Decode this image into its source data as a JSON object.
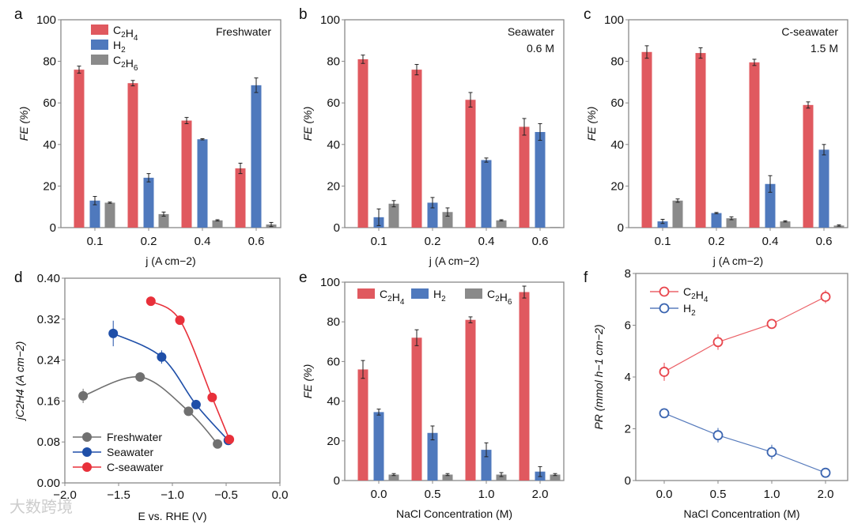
{
  "colors": {
    "C2H4": "#e0595f",
    "H2": "#4f79bd",
    "C2H6": "#8a8a8a",
    "Freshwater": "#707070",
    "Seawater": "#1f4fa8",
    "C-seawater": "#e8303a",
    "PR_C2H4": "#e8454c",
    "PR_H2": "#3a64b0"
  },
  "watermark": "大数跨境",
  "chart_data": [
    {
      "panel": "a",
      "type": "bar",
      "annotation": [
        "Freshwater"
      ],
      "categories": [
        "0.1",
        "0.2",
        "0.4",
        "0.6"
      ],
      "xlabel": "j (A cm−2)",
      "ylabel": "FE (%)",
      "ylim": [
        0,
        100
      ],
      "yticks": [
        0,
        20,
        40,
        60,
        80,
        100
      ],
      "legend": "top-left",
      "series": [
        {
          "name": "C2H4",
          "values": [
            76,
            69.5,
            51.5,
            28.5
          ],
          "errors": [
            1.7,
            1.3,
            1.5,
            2.5
          ]
        },
        {
          "name": "H2",
          "values": [
            13,
            24,
            42.5,
            68.5
          ],
          "errors": [
            2,
            2,
            0.3,
            3.5
          ]
        },
        {
          "name": "C2H6",
          "values": [
            12,
            6.5,
            3.5,
            1.5
          ],
          "errors": [
            0.3,
            1,
            0.3,
            1
          ]
        }
      ]
    },
    {
      "panel": "b",
      "type": "bar",
      "annotation": [
        "Seawater",
        "0.6 M"
      ],
      "categories": [
        "0.1",
        "0.2",
        "0.4",
        "0.6"
      ],
      "xlabel": "j (A cm−2)",
      "ylabel": "FE (%)",
      "ylim": [
        0,
        100
      ],
      "yticks": [
        0,
        20,
        40,
        60,
        80,
        100
      ],
      "series": [
        {
          "name": "C2H4",
          "values": [
            81,
            76,
            61.5,
            48.5
          ],
          "errors": [
            2,
            2.5,
            3.5,
            4
          ]
        },
        {
          "name": "H2",
          "values": [
            5,
            12,
            32.5,
            46
          ],
          "errors": [
            4,
            2.5,
            1,
            4
          ]
        },
        {
          "name": "C2H6",
          "values": [
            11.5,
            7.5,
            3.5,
            0.3
          ],
          "errors": [
            1.5,
            2,
            0.3,
            0
          ]
        }
      ]
    },
    {
      "panel": "c",
      "type": "bar",
      "annotation": [
        "C-seawater",
        "1.5 M"
      ],
      "categories": [
        "0.1",
        "0.2",
        "0.4",
        "0.6"
      ],
      "xlabel": "j (A cm−2)",
      "ylabel": "FE (%)",
      "ylim": [
        0,
        100
      ],
      "yticks": [
        0,
        20,
        40,
        60,
        80,
        100
      ],
      "series": [
        {
          "name": "C2H4",
          "values": [
            84.5,
            84,
            79.5,
            59
          ],
          "errors": [
            3,
            2.5,
            1.5,
            1.5
          ]
        },
        {
          "name": "H2",
          "values": [
            3,
            7,
            21,
            37.5
          ],
          "errors": [
            1,
            0.3,
            4,
            2.5
          ]
        },
        {
          "name": "C2H6",
          "values": [
            13,
            4.5,
            3,
            1
          ],
          "errors": [
            0.8,
            0.7,
            0.3,
            0.3
          ]
        }
      ]
    },
    {
      "panel": "d",
      "type": "line",
      "xlabel": "E vs. RHE (V)",
      "ylabel": "jC2H4 (A cm−2)",
      "xlim": [
        -2,
        0
      ],
      "ylim": [
        0,
        0.4
      ],
      "xticks": [
        "−2.0",
        "−1.5",
        "−1.0",
        "−0.5",
        "0.0"
      ],
      "xtickvals": [
        -2,
        -1.5,
        -1,
        -0.5,
        0
      ],
      "yticks": [
        "0.00",
        "0.08",
        "0.16",
        "0.24",
        "0.32",
        "0.40"
      ],
      "ytickvals": [
        0,
        0.08,
        0.16,
        0.24,
        0.32,
        0.4
      ],
      "legend": "bottom-left",
      "series": [
        {
          "name": "Freshwater",
          "x": [
            -1.83,
            -1.3,
            -0.85,
            -0.58
          ],
          "y": [
            0.17,
            0.207,
            0.14,
            0.076
          ],
          "errors": [
            0.014,
            0.003,
            0.004,
            0.003
          ]
        },
        {
          "name": "Seawater",
          "x": [
            -1.55,
            -1.1,
            -0.78,
            -0.48
          ],
          "y": [
            0.292,
            0.246,
            0.153,
            0.083
          ],
          "errors": [
            0.025,
            0.013,
            0.004,
            0.003
          ]
        },
        {
          "name": "C-seawater",
          "x": [
            -1.2,
            -0.93,
            -0.63,
            -0.47
          ],
          "y": [
            0.355,
            0.318,
            0.167,
            0.085
          ],
          "errors": [
            0.008,
            0.004,
            0.004,
            0.003
          ]
        }
      ]
    },
    {
      "panel": "e",
      "type": "bar",
      "categories": [
        "0.0",
        "0.5",
        "1.0",
        "2.0"
      ],
      "xlabel": "NaCl Concentration (M)",
      "ylabel": "FE (%)",
      "ylim": [
        0,
        100
      ],
      "yticks": [
        0,
        20,
        40,
        60,
        80,
        100
      ],
      "legend": "top",
      "series": [
        {
          "name": "C2H4",
          "values": [
            56,
            72,
            81,
            95
          ],
          "errors": [
            4.5,
            4,
            1.5,
            3
          ]
        },
        {
          "name": "H2",
          "values": [
            34.5,
            24,
            15.5,
            4.5
          ],
          "errors": [
            1.5,
            3.5,
            3.5,
            2.5
          ]
        },
        {
          "name": "C2H6",
          "values": [
            3,
            3,
            3,
            3
          ],
          "errors": [
            0.5,
            0.5,
            1,
            0.5
          ]
        }
      ]
    },
    {
      "panel": "f",
      "type": "line",
      "categories": [
        "0.0",
        "0.5",
        "1.0",
        "2.0"
      ],
      "xlabel": "NaCl Concentration (M)",
      "ylabel": "PR (mmol h−1 cm−2)",
      "ylim": [
        0,
        8
      ],
      "yticks": [
        0,
        2,
        4,
        6,
        8
      ],
      "legend": "top-left",
      "series": [
        {
          "name": "C2H4",
          "values": [
            4.2,
            5.35,
            6.05,
            7.1
          ],
          "errors": [
            0.35,
            0.3,
            0.1,
            0.25
          ]
        },
        {
          "name": "H2",
          "values": [
            2.6,
            1.75,
            1.1,
            0.3
          ],
          "errors": [
            0.1,
            0.28,
            0.28,
            0.1
          ]
        }
      ]
    }
  ]
}
